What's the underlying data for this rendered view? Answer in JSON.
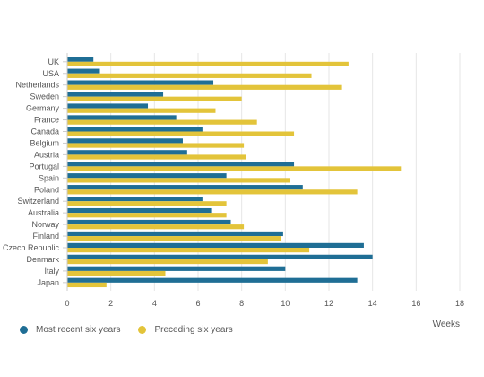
{
  "chart_data": {
    "type": "bar",
    "orientation": "horizontal",
    "categories": [
      "UK",
      "USA",
      "Netherlands",
      "Sweden",
      "Germany",
      "France",
      "Canada",
      "Belgium",
      "Austria",
      "Portugal",
      "Spain",
      "Poland",
      "Switzerland",
      "Australia",
      "Norway",
      "Finland",
      "Czech Republic",
      "Denmark",
      "Italy",
      "Japan"
    ],
    "series": [
      {
        "name": "Most recent six years",
        "color": "#1f6e95",
        "values": [
          1.2,
          1.5,
          6.7,
          4.4,
          3.7,
          5.0,
          6.2,
          5.3,
          5.5,
          10.4,
          7.3,
          10.8,
          6.2,
          6.6,
          7.5,
          9.9,
          13.6,
          14.0,
          10.0,
          13.3
        ]
      },
      {
        "name": "Preceding six years",
        "color": "#e3c43a",
        "values": [
          12.9,
          11.2,
          12.6,
          8.0,
          6.8,
          8.7,
          10.4,
          8.1,
          8.2,
          15.3,
          10.2,
          13.3,
          7.3,
          7.3,
          8.1,
          9.8,
          11.1,
          9.2,
          4.5,
          1.8
        ]
      }
    ],
    "xlabel": "Weeks",
    "xticks": [
      0,
      2,
      4,
      6,
      8,
      10,
      12,
      14,
      16,
      18
    ],
    "xlim": [
      0,
      18
    ],
    "grid": true,
    "legend_position": "bottom-left"
  }
}
